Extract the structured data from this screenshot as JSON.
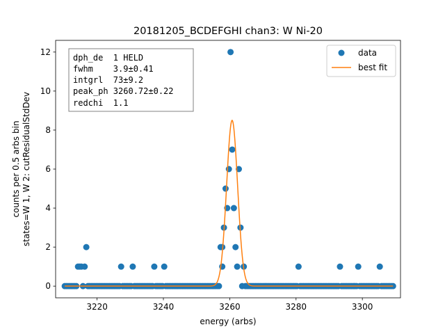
{
  "chart_data": {
    "type": "scatter",
    "title": "20181205_BCDEFGHI chan3: W Ni-20",
    "xlabel": "energy (arbs)",
    "ylabel_lines": [
      "counts per 0.5 arbs bin",
      "states=W 1, W 2: cutResidualStdDev"
    ],
    "xlim": [
      3207.5,
      3311.5
    ],
    "ylim": [
      -0.6,
      12.6
    ],
    "xticks": [
      3220,
      3240,
      3260,
      3280,
      3300
    ],
    "yticks": [
      0,
      2,
      4,
      6,
      8,
      10,
      12
    ],
    "xtick_labels": [
      "3220",
      "3240",
      "3260",
      "3280",
      "3300"
    ],
    "ytick_labels": [
      "0",
      "2",
      "4",
      "6",
      "8",
      "10",
      "12"
    ],
    "bin_width": 0.5,
    "x_range": [
      3210.25,
      3309.25
    ],
    "series": [
      {
        "name": "data",
        "kind": "points",
        "color": "#1f77b4",
        "nonzero": [
          [
            3214.25,
            1
          ],
          [
            3214.75,
            1
          ],
          [
            3215.25,
            1
          ],
          [
            3216.25,
            1
          ],
          [
            3216.75,
            2
          ],
          [
            3227.25,
            1
          ],
          [
            3230.75,
            1
          ],
          [
            3237.25,
            1
          ],
          [
            3240.25,
            1
          ],
          [
            3257.25,
            2
          ],
          [
            3257.75,
            1
          ],
          [
            3257.75,
            2
          ],
          [
            3258.25,
            3
          ],
          [
            3258.75,
            5
          ],
          [
            3259.25,
            4
          ],
          [
            3259.75,
            6
          ],
          [
            3260.25,
            12
          ],
          [
            3260.75,
            7
          ],
          [
            3261.25,
            4
          ],
          [
            3261.75,
            2
          ],
          [
            3262.25,
            1
          ],
          [
            3262.75,
            6
          ],
          [
            3263.25,
            3
          ],
          [
            3264.25,
            1
          ],
          [
            3280.75,
            1
          ],
          [
            3293.25,
            1
          ],
          [
            3298.75,
            1
          ],
          [
            3305.25,
            1
          ]
        ]
      },
      {
        "name": "best fit",
        "kind": "line",
        "color": "#ff7f0e",
        "model": {
          "center": 3260.72,
          "fwhm": 3.9,
          "peak": 8.5
        }
      }
    ],
    "legend": {
      "placement": "top-right"
    },
    "annotation": {
      "placement": "top-left",
      "lines": [
        "dph_de  1 HELD",
        "fwhm    3.9±0.41",
        "intgrl  73±9.2",
        "peak_ph 3260.72±0.22",
        "redchi  1.1"
      ]
    },
    "grid": false
  }
}
